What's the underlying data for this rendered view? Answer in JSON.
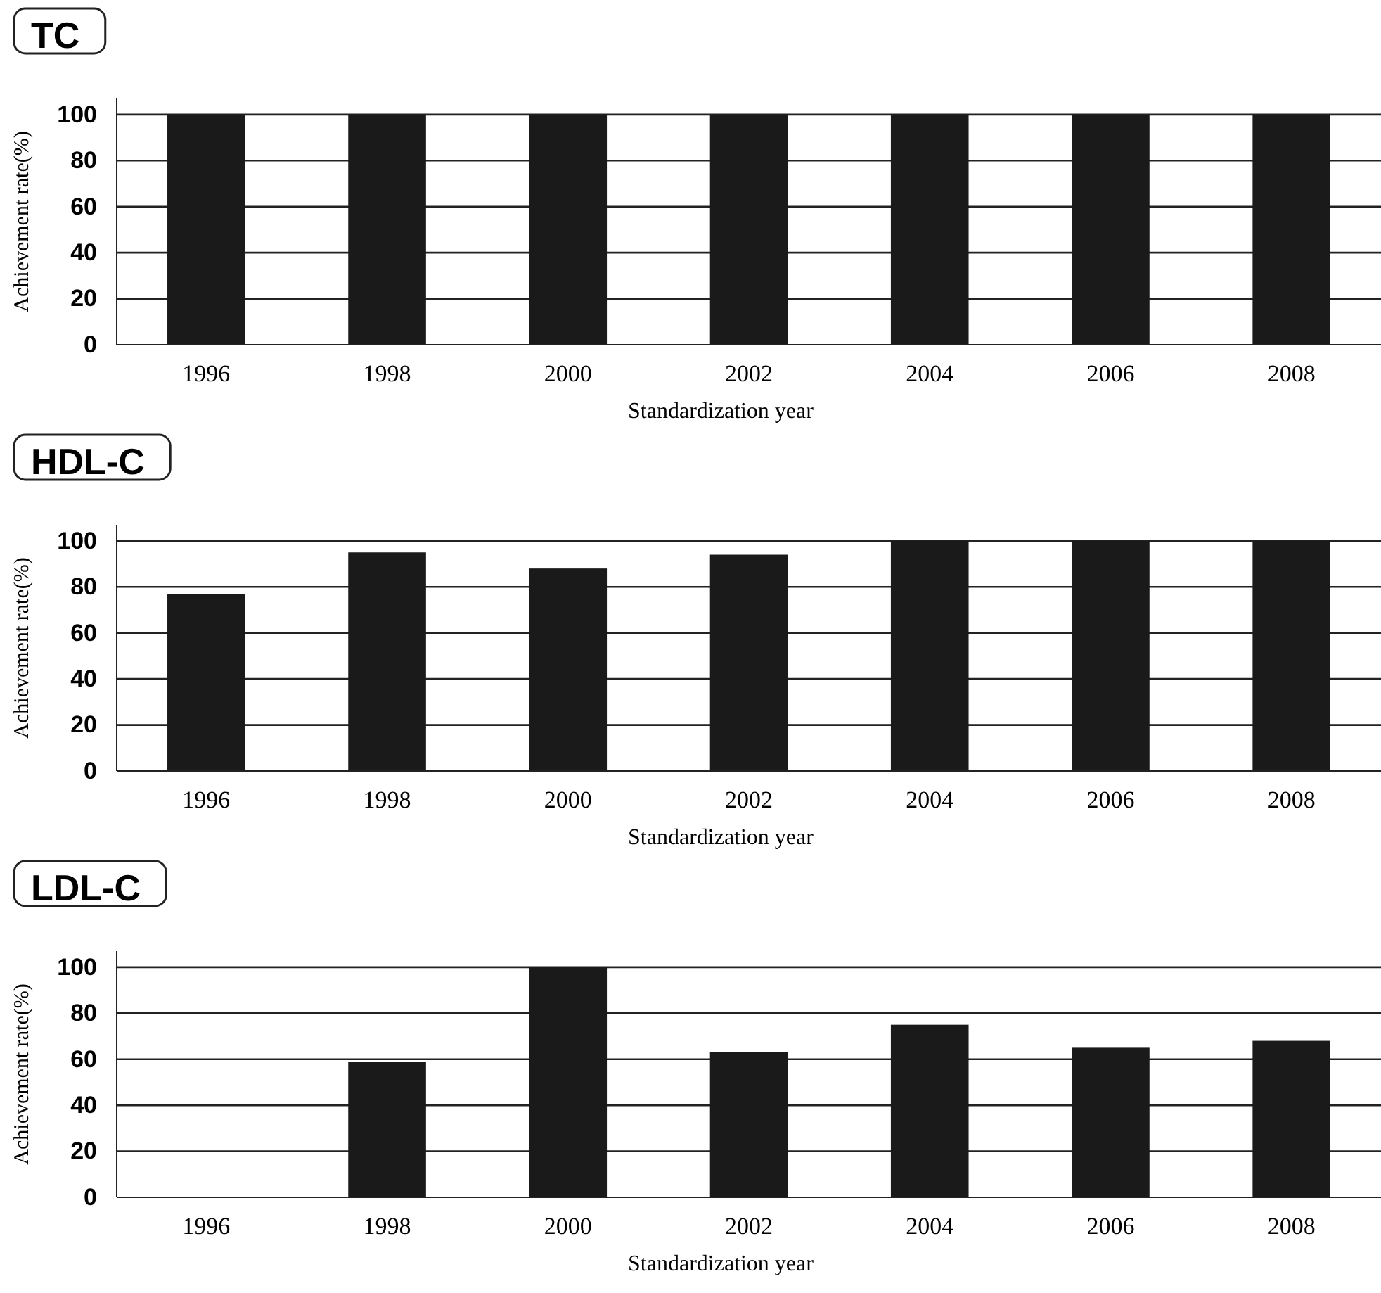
{
  "chart_data": [
    {
      "type": "bar",
      "title": "TC",
      "categories": [
        "1996",
        "1998",
        "2000",
        "2002",
        "2004",
        "2006",
        "2008"
      ],
      "values": [
        100,
        100,
        100,
        100,
        100,
        100,
        100
      ],
      "color": "#1a1a1a",
      "xlabel": "Standardization year",
      "ylabel": "Achievement rate(%)",
      "ylim": [
        0,
        107
      ],
      "yticks": [
        0,
        20,
        40,
        60,
        80,
        100
      ],
      "grid": "y"
    },
    {
      "type": "bar",
      "title": "HDL-C",
      "categories": [
        "1996",
        "1998",
        "2000",
        "2002",
        "2004",
        "2006",
        "2008"
      ],
      "values": [
        77,
        95,
        88,
        94,
        100,
        100,
        100
      ],
      "color": "#1a1a1a",
      "xlabel": "Standardization year",
      "ylabel": "Achievement rate(%)",
      "ylim": [
        0,
        107
      ],
      "yticks": [
        0,
        20,
        40,
        60,
        80,
        100
      ],
      "grid": "y"
    },
    {
      "type": "bar",
      "title": "LDL-C",
      "categories": [
        "1996",
        "1998",
        "2000",
        "2002",
        "2004",
        "2006",
        "2008"
      ],
      "values": [
        null,
        59,
        100,
        63,
        75,
        65,
        68
      ],
      "color": "#1a1a1a",
      "xlabel": "Standardization year",
      "ylabel": "Achievement rate(%)",
      "ylim": [
        0,
        107
      ],
      "yticks": [
        0,
        20,
        40,
        60,
        80,
        100
      ],
      "grid": "y"
    }
  ]
}
